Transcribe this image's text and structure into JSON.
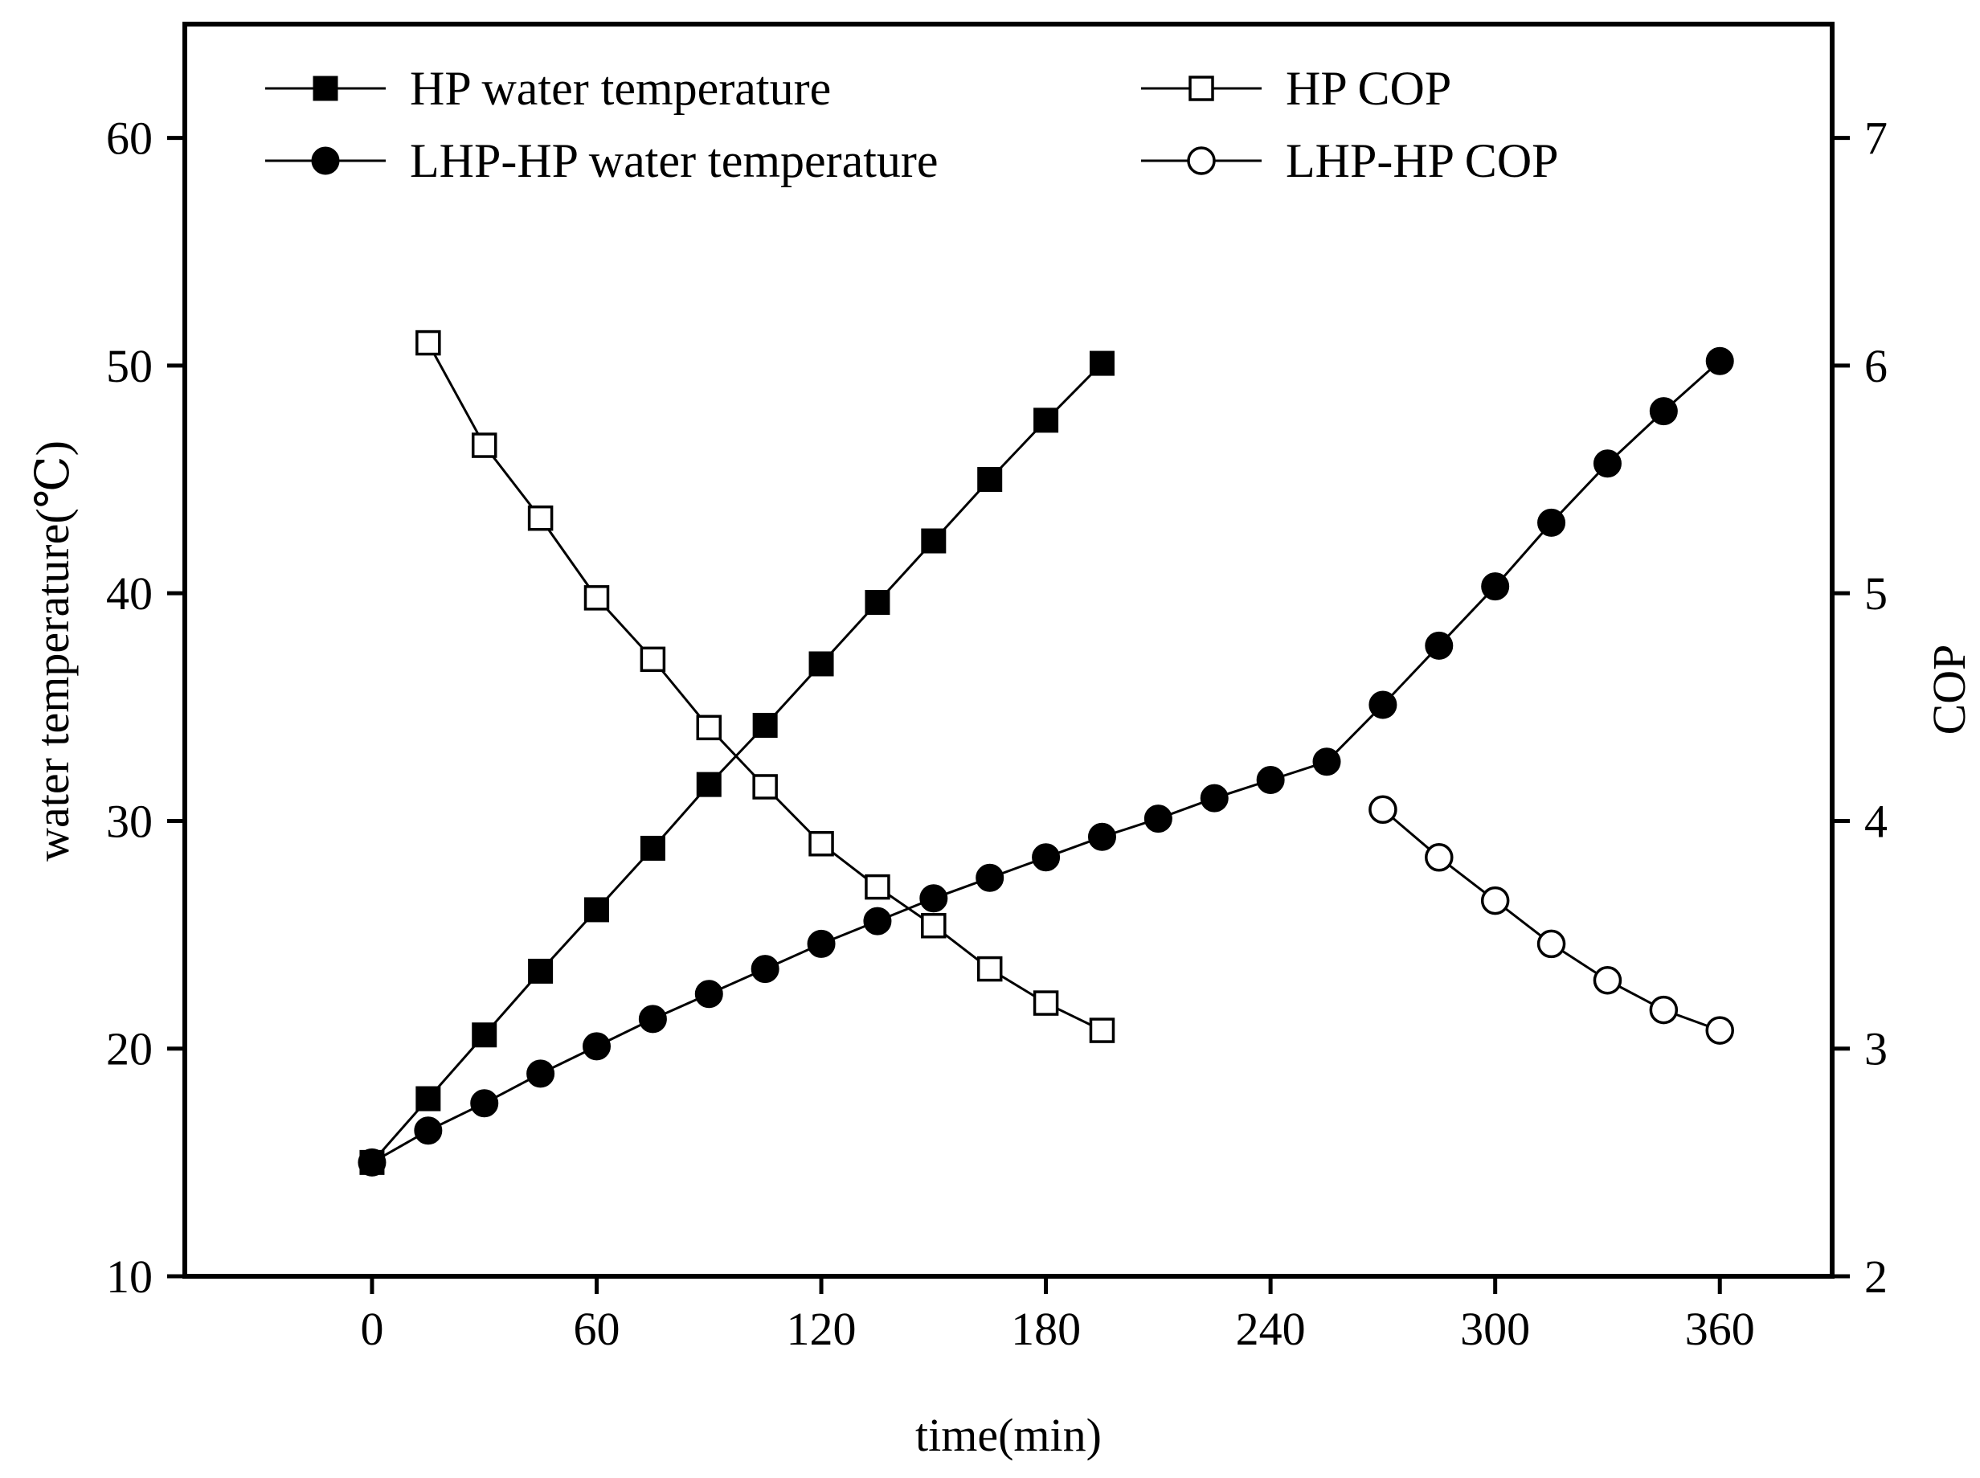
{
  "chart_data": {
    "type": "line",
    "title": "",
    "xlabel": "time(min)",
    "ylabel_left": "water temperature(℃)",
    "ylabel_right": "COP",
    "xlim": [
      -50,
      390
    ],
    "ylim_left": [
      10,
      65
    ],
    "ylim_right": [
      2,
      7.5
    ],
    "x_ticks": [
      "0",
      "60",
      "120",
      "180",
      "240",
      "300",
      "360"
    ],
    "y_left_ticks": [
      "10",
      "20",
      "30",
      "40",
      "50",
      "60"
    ],
    "y_right_ticks": [
      "2",
      "3",
      "4",
      "5",
      "6",
      "7"
    ],
    "grid": false,
    "legend_position": "top",
    "series": [
      {
        "name": "HP water temperature",
        "axis": "left",
        "marker": "square-filled",
        "x": [
          0,
          15,
          30,
          45,
          60,
          75,
          90,
          105,
          120,
          135,
          150,
          165,
          180,
          195
        ],
        "y": [
          15.0,
          17.8,
          20.6,
          23.4,
          26.1,
          28.8,
          31.6,
          34.2,
          36.9,
          39.6,
          42.3,
          45.0,
          47.6,
          50.1
        ]
      },
      {
        "name": "LHP-HP water temperature",
        "axis": "left",
        "marker": "circle-filled",
        "x": [
          0,
          15,
          30,
          45,
          60,
          75,
          90,
          105,
          120,
          135,
          150,
          165,
          180,
          195,
          210,
          225,
          240,
          255,
          270,
          285,
          300,
          315,
          330,
          345,
          360
        ],
        "y": [
          15.0,
          16.4,
          17.6,
          18.9,
          20.1,
          21.3,
          22.4,
          23.5,
          24.6,
          25.6,
          26.6,
          27.5,
          28.4,
          29.3,
          30.1,
          31.0,
          31.8,
          32.6,
          35.1,
          37.7,
          40.3,
          43.1,
          45.7,
          48.0,
          50.2
        ]
      },
      {
        "name": "HP COP",
        "axis": "right",
        "marker": "square-open",
        "x": [
          15,
          30,
          45,
          60,
          75,
          90,
          105,
          120,
          135,
          150,
          165,
          180,
          195
        ],
        "y": [
          6.1,
          5.65,
          5.33,
          4.98,
          4.71,
          4.41,
          4.15,
          3.9,
          3.71,
          3.54,
          3.35,
          3.2,
          3.08
        ]
      },
      {
        "name": "LHP-HP COP",
        "axis": "right",
        "marker": "circle-open",
        "x": [
          270,
          285,
          300,
          315,
          330,
          345,
          360
        ],
        "y": [
          4.05,
          3.84,
          3.65,
          3.46,
          3.3,
          3.17,
          3.08
        ]
      }
    ]
  }
}
